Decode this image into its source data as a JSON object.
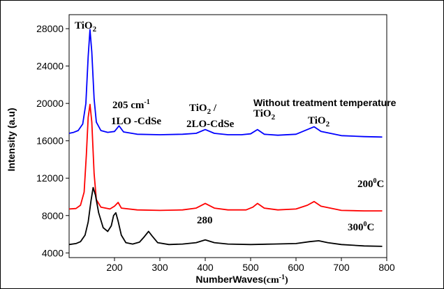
{
  "chart_data": {
    "type": "line",
    "xlabel": "NumberWaves",
    "xlabel_unit": "(cm",
    "xlabel_unit_sup": "-1",
    "xlabel_unit_close": ")",
    "ylabel": "Intensity (a.u)",
    "xlim": [
      100,
      800
    ],
    "ylim": [
      3500,
      29500
    ],
    "xticks": [
      200,
      300,
      400,
      500,
      600,
      700,
      800
    ],
    "yticks": [
      4000,
      8000,
      12000,
      16000,
      20000,
      24000,
      28000
    ],
    "series": [
      {
        "label": "Without treatment temperature",
        "color": "#0000ff",
        "points": [
          [
            100,
            16800
          ],
          [
            110,
            16900
          ],
          [
            120,
            17100
          ],
          [
            130,
            17800
          ],
          [
            137,
            20000
          ],
          [
            142,
            25000
          ],
          [
            146,
            27900
          ],
          [
            150,
            25500
          ],
          [
            155,
            20500
          ],
          [
            160,
            18000
          ],
          [
            170,
            17100
          ],
          [
            185,
            16900
          ],
          [
            200,
            17000
          ],
          [
            210,
            17600
          ],
          [
            220,
            16950
          ],
          [
            250,
            16700
          ],
          [
            300,
            16650
          ],
          [
            350,
            16700
          ],
          [
            380,
            16800
          ],
          [
            400,
            17200
          ],
          [
            420,
            16800
          ],
          [
            450,
            16650
          ],
          [
            480,
            16650
          ],
          [
            500,
            16750
          ],
          [
            515,
            17200
          ],
          [
            530,
            16700
          ],
          [
            560,
            16600
          ],
          [
            600,
            16700
          ],
          [
            625,
            17200
          ],
          [
            640,
            17500
          ],
          [
            655,
            17000
          ],
          [
            700,
            16550
          ],
          [
            750,
            16450
          ],
          [
            790,
            16400
          ]
        ]
      },
      {
        "label": "200⁰C",
        "color": "#ff0000",
        "points": [
          [
            100,
            8700
          ],
          [
            115,
            8750
          ],
          [
            125,
            9100
          ],
          [
            133,
            10500
          ],
          [
            138,
            14500
          ],
          [
            142,
            18500
          ],
          [
            146,
            19900
          ],
          [
            150,
            18000
          ],
          [
            155,
            12500
          ],
          [
            160,
            9700
          ],
          [
            170,
            8900
          ],
          [
            190,
            8700
          ],
          [
            200,
            9000
          ],
          [
            208,
            9400
          ],
          [
            215,
            8800
          ],
          [
            250,
            8600
          ],
          [
            300,
            8550
          ],
          [
            350,
            8600
          ],
          [
            380,
            8800
          ],
          [
            400,
            9300
          ],
          [
            420,
            8800
          ],
          [
            450,
            8600
          ],
          [
            490,
            8600
          ],
          [
            505,
            8900
          ],
          [
            515,
            9300
          ],
          [
            530,
            8800
          ],
          [
            560,
            8600
          ],
          [
            600,
            8700
          ],
          [
            625,
            9100
          ],
          [
            640,
            9500
          ],
          [
            655,
            9000
          ],
          [
            700,
            8550
          ],
          [
            750,
            8500
          ],
          [
            790,
            8500
          ]
        ]
      },
      {
        "label": "300⁰C",
        "color": "#000000",
        "points": [
          [
            100,
            4900
          ],
          [
            115,
            5000
          ],
          [
            125,
            5200
          ],
          [
            135,
            5900
          ],
          [
            142,
            7300
          ],
          [
            148,
            9500
          ],
          [
            153,
            11000
          ],
          [
            158,
            10200
          ],
          [
            165,
            8300
          ],
          [
            175,
            6700
          ],
          [
            185,
            6300
          ],
          [
            193,
            6900
          ],
          [
            198,
            8000
          ],
          [
            203,
            8300
          ],
          [
            208,
            7400
          ],
          [
            215,
            5900
          ],
          [
            225,
            5100
          ],
          [
            240,
            4950
          ],
          [
            255,
            5150
          ],
          [
            265,
            5700
          ],
          [
            275,
            6300
          ],
          [
            283,
            5800
          ],
          [
            295,
            5100
          ],
          [
            320,
            4900
          ],
          [
            350,
            4950
          ],
          [
            380,
            5100
          ],
          [
            400,
            5400
          ],
          [
            420,
            5100
          ],
          [
            450,
            4950
          ],
          [
            500,
            4900
          ],
          [
            550,
            4950
          ],
          [
            600,
            5000
          ],
          [
            630,
            5200
          ],
          [
            650,
            5300
          ],
          [
            670,
            5100
          ],
          [
            700,
            4900
          ],
          [
            750,
            4750
          ],
          [
            790,
            4700
          ]
        ]
      }
    ],
    "annotations": [
      {
        "id": "tio2-main",
        "text": "TiO",
        "sub": "2"
      },
      {
        "id": "cm205",
        "text": "205 cm",
        "sup": "-1"
      },
      {
        "id": "lo1",
        "text": "1LO -CdSe"
      },
      {
        "id": "tio2-400",
        "text": "TiO",
        "sub": "2",
        "suffix": " /"
      },
      {
        "id": "lo2",
        "text": "2LO-CdSe"
      },
      {
        "id": "tio2-515",
        "text": "TiO",
        "sub": "2"
      },
      {
        "id": "tio2-640",
        "text": "TiO",
        "sub": "2"
      },
      {
        "id": "no-treat",
        "text": "Without treatment temperature"
      },
      {
        "id": "t200",
        "text": "200",
        "sup": "0",
        "suffix": "C"
      },
      {
        "id": "t300",
        "text": "300",
        "sup": "0",
        "suffix": "C"
      },
      {
        "id": "p280",
        "text": "280"
      }
    ]
  }
}
